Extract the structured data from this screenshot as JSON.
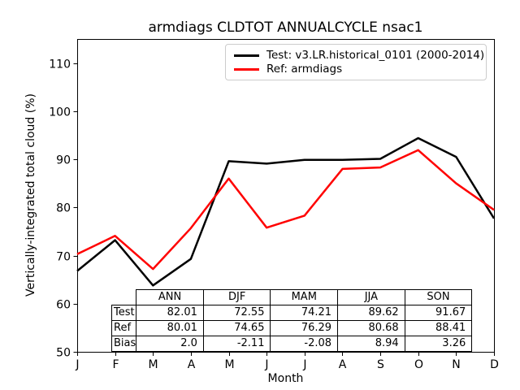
{
  "chart_data": {
    "type": "line",
    "title": "armdiags CLDTOT ANNUALCYCLE nsac1",
    "xlabel": "Month",
    "ylabel": "Vertically-integrated total cloud (%)",
    "x_tick_labels": [
      "J",
      "F",
      "M",
      "A",
      "M",
      "J",
      "J",
      "A",
      "S",
      "O",
      "N",
      "D"
    ],
    "y_ticks": [
      50,
      60,
      70,
      80,
      90,
      100,
      110
    ],
    "ylim": [
      50,
      115
    ],
    "grid": false,
    "legend_position": "upper right inside plot",
    "series": [
      {
        "name": "Test: v3.LR.historical_0101 (2000-2014)",
        "slug": "test",
        "color": "#000000",
        "line_width": 2.5,
        "values": [
          66.8,
          73.2,
          63.8,
          69.3,
          89.6,
          89.1,
          89.9,
          89.9,
          90.1,
          94.4,
          90.5,
          77.7
        ]
      },
      {
        "name": "Ref: armdiags",
        "slug": "ref",
        "color": "#ff0000",
        "line_width": 2.5,
        "values": [
          70.3,
          74.1,
          67.2,
          75.7,
          86.0,
          75.8,
          78.3,
          88.0,
          88.3,
          91.9,
          85.0,
          79.5
        ]
      }
    ],
    "table": {
      "col_labels": [
        "ANN",
        "DJF",
        "MAM",
        "JJA",
        "SON"
      ],
      "rows": [
        {
          "label": "Test",
          "values": [
            "82.01",
            "72.55",
            "74.21",
            "89.62",
            "91.67"
          ]
        },
        {
          "label": "Ref",
          "values": [
            "80.01",
            "74.65",
            "76.29",
            "80.68",
            "88.41"
          ]
        },
        {
          "label": "Bias",
          "values": [
            "2.0",
            "-2.11",
            "-2.08",
            "8.94",
            "3.26"
          ]
        }
      ]
    }
  }
}
